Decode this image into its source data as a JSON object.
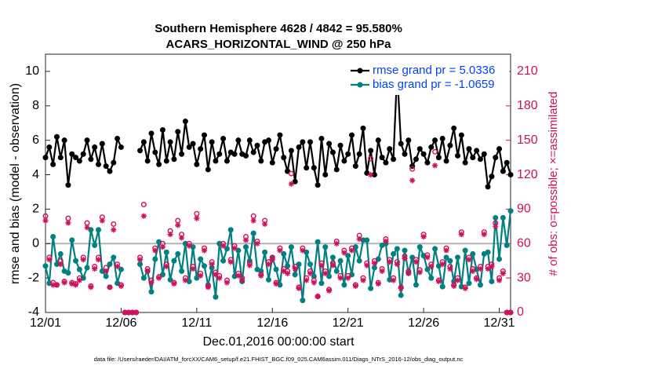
{
  "chart_data": {
    "type": "line",
    "title": "Southern Hemisphere 4628 / 4842 = 95.580%",
    "subtitle": "ACARS_HORIZONTAL_WIND @ 250 hPa",
    "x_label": "Dec.01,2016 00:00:00 start",
    "y_label": "rmse and bias (model - observation)",
    "y2_label": "# of obs: o=possible; ×=assimilated",
    "footnote": "data file: /Users/raeder/DAI/ATM_forcXX/CAM6_setup/f.e21.FHIST_BGC.f09_025.CAM6assim.011/Diags_NTrS_2016-12/obs_diag_output.nc",
    "legend": "upper right",
    "zero_line": true,
    "xlim": [
      0,
      30.75
    ],
    "xticks": [
      {
        "value": 0,
        "label": "12/01"
      },
      {
        "value": 5,
        "label": "12/06"
      },
      {
        "value": 10,
        "label": "12/11"
      },
      {
        "value": 15,
        "label": "12/16"
      },
      {
        "value": 20,
        "label": "12/21"
      },
      {
        "value": 25,
        "label": "12/26"
      },
      {
        "value": 30,
        "label": "12/31"
      }
    ],
    "ylim": [
      -4,
      11
    ],
    "yticks": [
      -4,
      -2,
      0,
      2,
      4,
      6,
      8,
      10
    ],
    "y2lim": [
      0,
      225
    ],
    "y2ticks": [
      0,
      30,
      60,
      90,
      120,
      150,
      180,
      210
    ],
    "x": [
      0,
      0.25,
      0.5,
      0.75,
      1,
      1.25,
      1.5,
      1.75,
      2,
      2.25,
      2.5,
      2.75,
      3,
      3.25,
      3.5,
      3.75,
      4,
      4.25,
      4.5,
      4.75,
      5,
      5.25,
      5.5,
      5.75,
      6,
      6.25,
      6.5,
      6.75,
      7,
      7.25,
      7.5,
      7.75,
      8,
      8.25,
      8.5,
      8.75,
      9,
      9.25,
      9.5,
      9.75,
      10,
      10.25,
      10.5,
      10.75,
      11,
      11.25,
      11.5,
      11.75,
      12,
      12.25,
      12.5,
      12.75,
      13,
      13.25,
      13.5,
      13.75,
      14,
      14.25,
      14.5,
      14.75,
      15,
      15.25,
      15.5,
      15.75,
      16,
      16.25,
      16.5,
      16.75,
      17,
      17.25,
      17.5,
      17.75,
      18,
      18.25,
      18.5,
      18.75,
      19,
      19.25,
      19.5,
      19.75,
      20,
      20.25,
      20.5,
      20.75,
      21,
      21.25,
      21.5,
      21.75,
      22,
      22.25,
      22.5,
      22.75,
      23,
      23.25,
      23.5,
      23.75,
      24,
      24.25,
      24.5,
      24.75,
      25,
      25.25,
      25.5,
      25.75,
      26,
      26.25,
      26.5,
      26.75,
      27,
      27.25,
      27.5,
      27.75,
      28,
      28.25,
      28.5,
      28.75,
      29,
      29.25,
      29.5,
      29.75,
      30,
      30.25,
      30.5,
      30.75
    ],
    "series": [
      {
        "name": "rmse grand pr = 5.0336",
        "color": "#000000",
        "marker": "dot",
        "values": [
          5.0,
          5.6,
          4.6,
          6.2,
          5.0,
          6.0,
          3.4,
          5.2,
          5.0,
          4.8,
          5.2,
          6.0,
          4.9,
          5.6,
          4.6,
          5.8,
          4.5,
          4.2,
          4.7,
          6.1,
          5.6,
          null,
          null,
          null,
          null,
          5.4,
          5.9,
          4.8,
          6.4,
          5.3,
          4.6,
          6.6,
          4.8,
          5.9,
          4.9,
          6.5,
          5.2,
          7.1,
          5.6,
          5.8,
          4.6,
          5.5,
          6.3,
          4.3,
          5.9,
          4.8,
          5.2,
          6.1,
          4.8,
          5.3,
          5.2,
          6.0,
          5.2,
          5.1,
          6.0,
          5.3,
          5.7,
          4.8,
          5.9,
          6.0,
          4.7,
          5.5,
          6.3,
          5.0,
          4.2,
          5.4,
          3.6,
          5.6,
          5.9,
          4.4,
          5.9,
          4.4,
          3.4,
          6.1,
          4.0,
          5.8,
          5.3,
          4.3,
          5.7,
          4.8,
          5.2,
          6.3,
          4.5,
          5.2,
          6.7,
          4.1,
          5.4,
          4.0,
          6.0,
          5.0,
          4.7,
          5.5,
          4.9,
          10.0,
          5.8,
          5.2,
          6.0,
          4.5,
          4.9,
          5.5,
          5.2,
          4.7,
          5.6,
          6.0,
          5.0,
          6.1,
          4.8,
          5.7,
          6.7,
          5.1,
          6.3,
          4.7,
          5.5,
          5.0,
          5.4,
          4.9,
          5.2,
          3.3,
          3.9,
          5.0,
          5.5,
          4.2,
          4.7,
          4.0
        ]
      },
      {
        "name": "bias grand pr = -1.0659",
        "color": "#008080",
        "marker": "dot",
        "values": [
          -1.3,
          -2.3,
          0.4,
          -1.2,
          -0.6,
          -1.6,
          -1.7,
          0.2,
          -1.0,
          -1.5,
          -2.0,
          -1.4,
          0.8,
          -0.1,
          0.8,
          -1.6,
          -1.9,
          -1.2,
          -0.8,
          -2.3,
          -1.5,
          null,
          null,
          null,
          null,
          -1.2,
          -2.0,
          -1.6,
          -2.8,
          -0.9,
          0.1,
          -1.8,
          -0.5,
          -2.1,
          -1.0,
          -0.6,
          -1.6,
          0.0,
          -2.2,
          -0.2,
          -2.0,
          -0.9,
          -1.3,
          -2.4,
          -1.4,
          -3.1,
          0.0,
          -1.0,
          -0.3,
          0.8,
          -1.9,
          -0.4,
          -2.2,
          -0.2,
          -1.0,
          0.6,
          -1.5,
          -1.6,
          -0.5,
          -2.1,
          -0.8,
          -1.5,
          -2.4,
          -0.6,
          -1.3,
          -0.2,
          -1.8,
          -1.2,
          -3.3,
          -0.5,
          -1.2,
          -1.9,
          0.1,
          -2.3,
          -0.2,
          -1.9,
          -0.8,
          -1.6,
          -1.0,
          -2.4,
          -0.7,
          -1.8,
          -0.2,
          -1.0,
          0.2,
          0.2,
          -2.6,
          -1.4,
          -0.9,
          -0.1,
          0.0,
          -2.1,
          -0.6,
          -0.3,
          -3.0,
          -0.4,
          -1.7,
          -0.8,
          -2.4,
          -0.2,
          -0.7,
          -1.5,
          -2.0,
          -0.3,
          -1.3,
          -2.5,
          -0.8,
          -1.0,
          -2.2,
          -0.8,
          -2.5,
          -0.4,
          -2.3,
          -0.6,
          -1.5,
          -2.4,
          -0.6,
          -0.5,
          -2.2,
          1.5,
          -0.9,
          1.5,
          -0.1,
          1.9
        ]
      },
      {
        "color": "#d0105a",
        "marker": "circle",
        "axis": "y2",
        "values": [
          84,
          48,
          26,
          24,
          45,
          27,
          82,
          26,
          25,
          30,
          48,
          78,
          23,
          40,
          48,
          83,
          39,
          22,
          77,
          42,
          24,
          0,
          0,
          0,
          0,
          48,
          94,
          38,
          28,
          56,
          31,
          60,
          42,
          71,
          26,
          80,
          68,
          30,
          60,
          40,
          86,
          34,
          56,
          23,
          44,
          35,
          32,
          60,
          28,
          46,
          58,
          34,
          30,
          66,
          43,
          84,
          62,
          33,
          80,
          44,
          48,
          26,
          56,
          38,
          36,
          121,
          40,
          22,
          56,
          30,
          36,
          28,
          14,
          43,
          36,
          20,
          43,
          62,
          32,
          54,
          32,
          56,
          24,
          67,
          30,
          43,
          134,
          45,
          26,
          38,
          64,
          46,
          30,
          44,
          22,
          49,
          36,
          125,
          46,
          37,
          68,
          50,
          42,
          140,
          28,
          44,
          56,
          40,
          24,
          30,
          70,
          22,
          48,
          38,
          30,
          40,
          70,
          40,
          42,
          78,
          30,
          36,
          0,
          0
        ]
      },
      {
        "color": "#d0105a",
        "marker": "asterisk",
        "axis": "y2",
        "values": [
          80,
          46,
          24,
          24,
          42,
          26,
          78,
          25,
          24,
          28,
          46,
          74,
          22,
          38,
          46,
          80,
          36,
          22,
          72,
          40,
          23,
          0,
          0,
          0,
          0,
          46,
          84,
          36,
          26,
          54,
          30,
          57,
          40,
          68,
          25,
          76,
          65,
          28,
          58,
          38,
          82,
          32,
          54,
          22,
          42,
          33,
          30,
          58,
          26,
          44,
          56,
          32,
          28,
          63,
          41,
          80,
          60,
          32,
          77,
          42,
          46,
          25,
          54,
          36,
          34,
          112,
          38,
          21,
          54,
          28,
          34,
          26,
          14,
          41,
          34,
          19,
          41,
          60,
          30,
          52,
          30,
          54,
          23,
          64,
          28,
          41,
          120,
          43,
          25,
          36,
          62,
          44,
          28,
          42,
          21,
          47,
          34,
          115,
          44,
          35,
          66,
          48,
          40,
          128,
          27,
          42,
          54,
          38,
          23,
          28,
          68,
          21,
          46,
          36,
          29,
          38,
          68,
          38,
          40,
          75,
          28,
          34,
          0,
          0
        ]
      }
    ]
  }
}
